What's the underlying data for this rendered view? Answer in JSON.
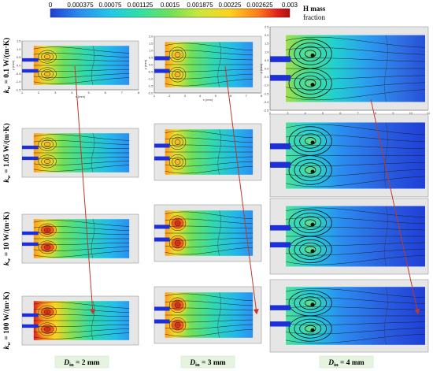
{
  "colorbar": {
    "ticks": [
      "0",
      "0.000375",
      "0.00075",
      "0.001125",
      "0.0015",
      "0.001875",
      "0.00225",
      "0.002625",
      "0.003"
    ],
    "legend_line1": "H mass",
    "legend_line2": "fraction",
    "stops": [
      "#1f3fd6",
      "#2b8cf0",
      "#22c8e8",
      "#2fe0a8",
      "#6fe05a",
      "#c9e83a",
      "#ffd21f",
      "#ff7a1a",
      "#e0201a",
      "#b01010"
    ]
  },
  "rows": [
    {
      "label": "k",
      "sub": "w",
      "value": " = 0.1 W/(m·K)"
    },
    {
      "label": "k",
      "sub": "w",
      "value": " = 1.05 W/(m·K)"
    },
    {
      "label": "k",
      "sub": "w",
      "value": " = 10 W/(m·K)"
    },
    {
      "label": "k",
      "sub": "w",
      "value": " = 100 W/(m·K)"
    }
  ],
  "columns": [
    {
      "label": "D",
      "sub": "in",
      "value": " = 2 mm"
    },
    {
      "label": "D",
      "sub": "in",
      "value": " = 3 mm"
    },
    {
      "label": "D",
      "sub": "in",
      "value": " = 4 mm"
    }
  ],
  "axes": {
    "c0": {
      "x_ticks": [
        "1",
        "2",
        "3",
        "4",
        "5",
        "6",
        "7",
        "8"
      ],
      "y_ticks": [
        "1.5",
        "1.0",
        "0.5",
        "0.0",
        "-0.5",
        "-1.0",
        "-1.5"
      ],
      "xlabel": "x (mm)",
      "ylabel": "y (mm)"
    },
    "c1": {
      "x_ticks": [
        "1",
        "2",
        "3",
        "4",
        "5",
        "6",
        "7",
        "8"
      ],
      "y_ticks": [
        "2.0",
        "1.5",
        "1.0",
        "0.5",
        "0.0",
        "-0.5",
        "-1.0",
        "-1.5",
        "-2.0"
      ],
      "xlabel": "x (mm)",
      "ylabel": "y (mm)"
    },
    "c2": {
      "x_ticks": [
        "2",
        "3",
        "4",
        "5",
        "6",
        "7",
        "8",
        "9",
        "10",
        "11"
      ],
      "y_ticks": [
        "2.5",
        "2.0",
        "1.5",
        "1.0",
        "0.5",
        "0.0",
        "-0.5",
        "-1.0",
        "-1.5",
        "-2.0",
        "-2.5"
      ],
      "xlabel": "x (mm)",
      "ylabel": "y (mm)"
    }
  }
}
